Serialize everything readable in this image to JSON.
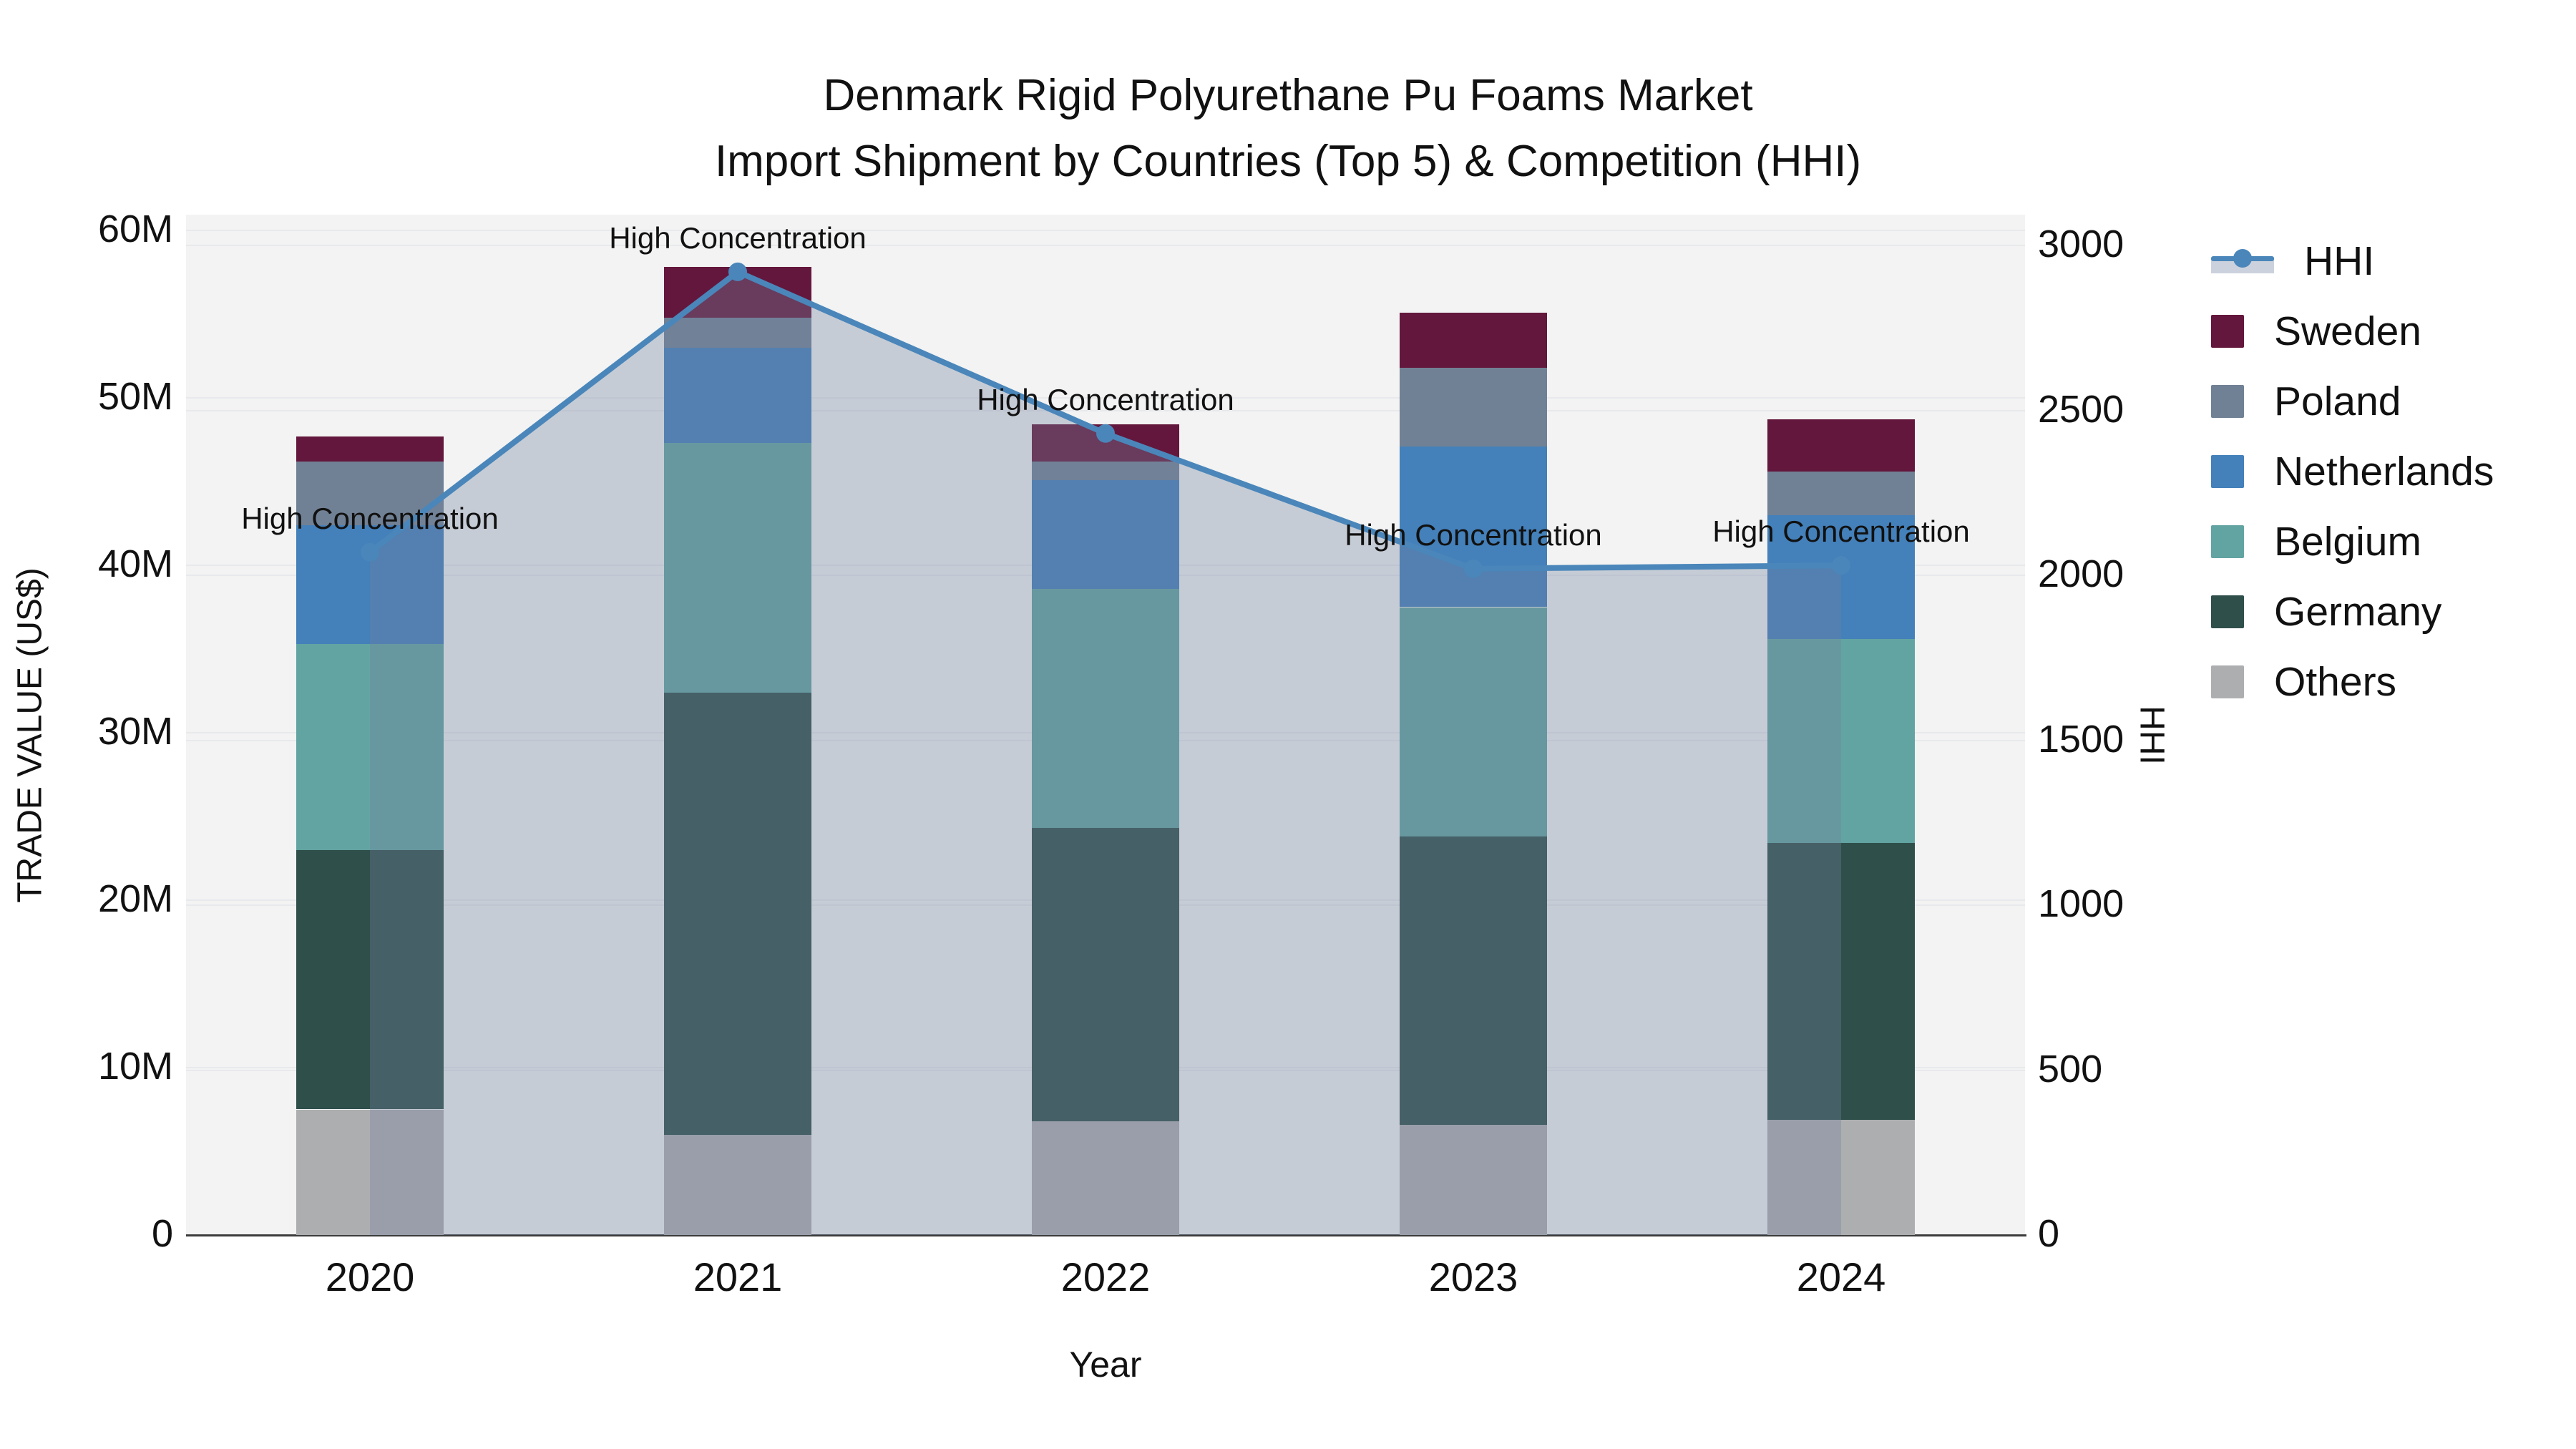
{
  "title": {
    "line1": "Denmark Rigid Polyurethane Pu Foams Market",
    "line2": "Import Shipment by Countries (Top 5) & Competition (HHI)"
  },
  "axes": {
    "x": {
      "title": "Year"
    },
    "y_left": {
      "title": "TRADE VALUE (US$)"
    },
    "y_right": {
      "title": "HHI"
    }
  },
  "legend": {
    "items": [
      {
        "label": "HHI",
        "type": "line",
        "color": "#4a86ba"
      },
      {
        "label": "Sweden",
        "type": "swatch",
        "color": "#64173c"
      },
      {
        "label": "Poland",
        "type": "swatch",
        "color": "#718195"
      },
      {
        "label": "Netherlands",
        "type": "swatch",
        "color": "#4480ba"
      },
      {
        "label": "Belgium",
        "type": "swatch",
        "color": "#62a4a2"
      },
      {
        "label": "Germany",
        "type": "swatch",
        "color": "#2f4f4b"
      },
      {
        "label": "Others",
        "type": "swatch",
        "color": "#adaeb0"
      }
    ]
  },
  "chart_data": {
    "type": "bar",
    "stacked": true,
    "unit": "USD millions (left axis), HHI index (right axis)",
    "categories": [
      "2020",
      "2021",
      "2022",
      "2023",
      "2024"
    ],
    "series": [
      {
        "name": "Others",
        "color": "#adaeb0",
        "values": [
          7.5,
          6.0,
          6.8,
          6.6,
          6.9
        ]
      },
      {
        "name": "Germany",
        "color": "#2f4f4b",
        "values": [
          15.5,
          26.4,
          17.5,
          17.2,
          16.5
        ]
      },
      {
        "name": "Belgium",
        "color": "#62a4a2",
        "values": [
          12.3,
          14.9,
          14.3,
          13.7,
          12.2
        ]
      },
      {
        "name": "Netherlands",
        "color": "#4480ba",
        "values": [
          7.1,
          5.7,
          6.5,
          9.6,
          7.4
        ]
      },
      {
        "name": "Poland",
        "color": "#718195",
        "values": [
          3.8,
          1.8,
          1.1,
          4.7,
          2.6
        ]
      },
      {
        "name": "Sweden",
        "color": "#64173c",
        "values": [
          1.5,
          3.0,
          2.2,
          3.3,
          3.1
        ]
      }
    ],
    "line_series": {
      "name": "HHI",
      "axis": "right",
      "color": "#4a86ba",
      "fill_color": "rgba(114,130,157,0.34)",
      "values": [
        2070,
        2920,
        2430,
        2020,
        2030
      ],
      "point_annotation": "High Concentration"
    },
    "ylim_left": [
      0,
      60
    ],
    "ylim_right": [
      0,
      3000
    ],
    "y_left_ticks": [
      "0",
      "10M",
      "20M",
      "30M",
      "40M",
      "50M",
      "60M"
    ],
    "y_right_ticks": [
      "0",
      "500",
      "1000",
      "1500",
      "2000",
      "2500",
      "3000"
    ],
    "grid": true,
    "legend_position": "right",
    "plot_background": "#f2f3f2"
  }
}
